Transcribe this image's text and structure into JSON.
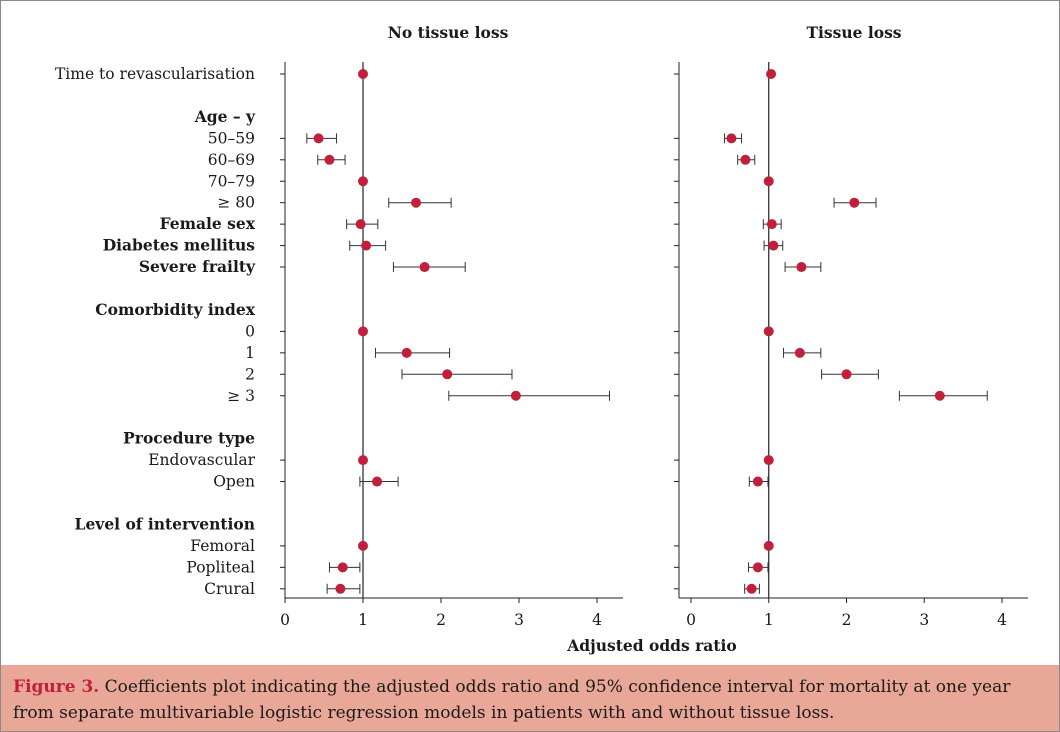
{
  "chart_data": {
    "type": "scatter",
    "style": "forest-plot",
    "xlabel": "Adjusted odds ratio",
    "xlim": [
      -0.1,
      4.3
    ],
    "xticks": [
      0,
      1,
      2,
      3,
      4
    ],
    "reference_line": 1,
    "point_color": "#c0203c",
    "rows": [
      {
        "label": "Time to revascularisation",
        "bold": false
      },
      {
        "label": "",
        "bold": false
      },
      {
        "label": "Age – y",
        "bold": true
      },
      {
        "label": "50–59",
        "bold": false
      },
      {
        "label": "60–69",
        "bold": false
      },
      {
        "label": "70–79",
        "bold": false
      },
      {
        "label": "≥ 80",
        "bold": false
      },
      {
        "label": "Female sex",
        "bold": true
      },
      {
        "label": "Diabetes mellitus",
        "bold": true
      },
      {
        "label": "Severe frailty",
        "bold": true
      },
      {
        "label": "",
        "bold": false
      },
      {
        "label": "Comorbidity index",
        "bold": true
      },
      {
        "label": "0",
        "bold": false
      },
      {
        "label": "1",
        "bold": false
      },
      {
        "label": "2",
        "bold": false
      },
      {
        "label": "≥ 3",
        "bold": false
      },
      {
        "label": "",
        "bold": false
      },
      {
        "label": "Procedure type",
        "bold": true
      },
      {
        "label": "Endovascular",
        "bold": false
      },
      {
        "label": "Open",
        "bold": false
      },
      {
        "label": "",
        "bold": false
      },
      {
        "label": "Level of intervention",
        "bold": true
      },
      {
        "label": "Femoral",
        "bold": false
      },
      {
        "label": "Popliteal",
        "bold": false
      },
      {
        "label": "Crural",
        "bold": false
      }
    ],
    "panels": [
      {
        "title": "No tissue loss",
        "estimates": [
          [
            1.0,
            null,
            null
          ],
          null,
          null,
          [
            0.43,
            0.28,
            0.66
          ],
          [
            0.57,
            0.42,
            0.77
          ],
          [
            1.0,
            null,
            null
          ],
          [
            1.68,
            1.33,
            2.13
          ],
          [
            0.97,
            0.79,
            1.19
          ],
          [
            1.04,
            0.83,
            1.29
          ],
          [
            1.79,
            1.39,
            2.31
          ],
          null,
          null,
          [
            1.0,
            null,
            null
          ],
          [
            1.56,
            1.16,
            2.11
          ],
          [
            2.08,
            1.5,
            2.91
          ],
          [
            2.96,
            2.1,
            4.16
          ],
          null,
          null,
          [
            1.0,
            null,
            null
          ],
          [
            1.18,
            0.96,
            1.45
          ],
          null,
          null,
          [
            1.0,
            null,
            null
          ],
          [
            0.74,
            0.57,
            0.96
          ],
          [
            0.71,
            0.54,
            0.96
          ]
        ]
      },
      {
        "title": "Tissue loss",
        "estimates": [
          [
            1.03,
            null,
            null
          ],
          null,
          null,
          [
            0.52,
            0.43,
            0.65
          ],
          [
            0.7,
            0.6,
            0.82
          ],
          [
            1.0,
            null,
            null
          ],
          [
            2.1,
            1.84,
            2.38
          ],
          [
            1.04,
            0.93,
            1.16
          ],
          [
            1.06,
            0.94,
            1.18
          ],
          [
            1.42,
            1.21,
            1.67
          ],
          null,
          null,
          [
            1.0,
            null,
            null
          ],
          [
            1.4,
            1.19,
            1.67
          ],
          [
            2.0,
            1.68,
            2.41
          ],
          [
            3.2,
            2.68,
            3.81
          ],
          null,
          null,
          [
            1.0,
            null,
            null
          ],
          [
            0.86,
            0.75,
            0.99
          ],
          null,
          null,
          [
            1.0,
            null,
            null
          ],
          [
            0.86,
            0.74,
            0.99
          ],
          [
            0.78,
            0.69,
            0.88
          ]
        ]
      }
    ]
  },
  "caption": {
    "label": "Figure 3.",
    "text": " Coefficients plot indicating the adjusted odds ratio and 95% confidence interval for mortality at one year from separate multivariable logistic regression models in patients with and without tissue loss."
  }
}
